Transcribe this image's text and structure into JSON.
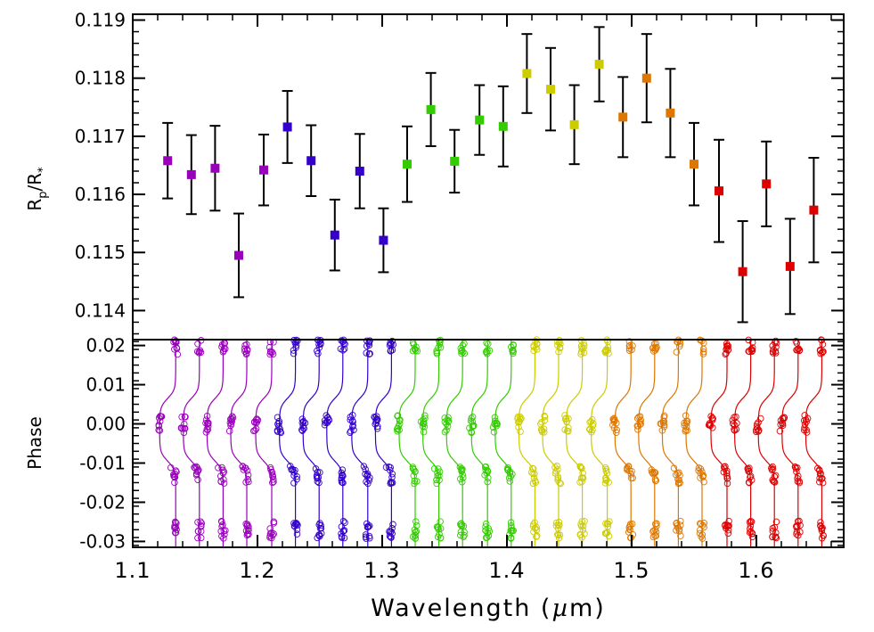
{
  "chart_data": [
    {
      "type": "scatter",
      "panel": "top",
      "ylabel": "Rp/R*",
      "ylabel_parts": {
        "main": "R",
        "sub1": "p",
        "slash": "/R",
        "sub2": "*"
      },
      "ylim": [
        0.1135,
        0.1191
      ],
      "yticks": [
        "0.114",
        "0.115",
        "0.116",
        "0.117",
        "0.118",
        "0.119"
      ],
      "ytick_values": [
        0.114,
        0.115,
        0.116,
        0.117,
        0.118,
        0.119
      ],
      "xlim": [
        1.1,
        1.67
      ],
      "grid": false,
      "error_bars": true,
      "points": [
        {
          "x": 1.128,
          "y": 0.11658,
          "err": 0.00065,
          "color": "#9900bb"
        },
        {
          "x": 1.147,
          "y": 0.11634,
          "err": 0.00068,
          "color": "#9900bb"
        },
        {
          "x": 1.166,
          "y": 0.11645,
          "err": 0.00073,
          "color": "#9900bb"
        },
        {
          "x": 1.185,
          "y": 0.11495,
          "err": 0.00072,
          "color": "#9900bb"
        },
        {
          "x": 1.205,
          "y": 0.11642,
          "err": 0.00061,
          "color": "#9900bb"
        },
        {
          "x": 1.224,
          "y": 0.11716,
          "err": 0.00062,
          "color": "#3300cc"
        },
        {
          "x": 1.243,
          "y": 0.11658,
          "err": 0.00061,
          "color": "#3300cc"
        },
        {
          "x": 1.262,
          "y": 0.1153,
          "err": 0.00061,
          "color": "#3300cc"
        },
        {
          "x": 1.282,
          "y": 0.1164,
          "err": 0.00064,
          "color": "#3300cc"
        },
        {
          "x": 1.301,
          "y": 0.11521,
          "err": 0.00055,
          "color": "#3300cc"
        },
        {
          "x": 1.32,
          "y": 0.11652,
          "err": 0.00065,
          "color": "#33cc00"
        },
        {
          "x": 1.339,
          "y": 0.11746,
          "err": 0.00063,
          "color": "#33cc00"
        },
        {
          "x": 1.358,
          "y": 0.11657,
          "err": 0.00054,
          "color": "#33cc00"
        },
        {
          "x": 1.378,
          "y": 0.11728,
          "err": 0.0006,
          "color": "#33cc00"
        },
        {
          "x": 1.397,
          "y": 0.11717,
          "err": 0.00069,
          "color": "#33cc00"
        },
        {
          "x": 1.416,
          "y": 0.11808,
          "err": 0.00068,
          "color": "#cccc00"
        },
        {
          "x": 1.435,
          "y": 0.11781,
          "err": 0.00071,
          "color": "#cccc00"
        },
        {
          "x": 1.454,
          "y": 0.1172,
          "err": 0.00068,
          "color": "#cccc00"
        },
        {
          "x": 1.474,
          "y": 0.11824,
          "err": 0.00064,
          "color": "#cccc00"
        },
        {
          "x": 1.493,
          "y": 0.11733,
          "err": 0.00069,
          "color": "#dd7700"
        },
        {
          "x": 1.512,
          "y": 0.118,
          "err": 0.00076,
          "color": "#dd7700"
        },
        {
          "x": 1.531,
          "y": 0.1174,
          "err": 0.00076,
          "color": "#dd7700"
        },
        {
          "x": 1.55,
          "y": 0.11652,
          "err": 0.00071,
          "color": "#dd7700"
        },
        {
          "x": 1.57,
          "y": 0.11606,
          "err": 0.00088,
          "color": "#dd0000"
        },
        {
          "x": 1.589,
          "y": 0.11467,
          "err": 0.00087,
          "color": "#dd0000"
        },
        {
          "x": 1.608,
          "y": 0.11618,
          "err": 0.00073,
          "color": "#dd0000"
        },
        {
          "x": 1.627,
          "y": 0.11476,
          "err": 0.00082,
          "color": "#dd0000"
        },
        {
          "x": 1.646,
          "y": 0.11573,
          "err": 0.0009,
          "color": "#dd0000"
        }
      ]
    },
    {
      "type": "line",
      "panel": "bottom",
      "ylabel": "Phase",
      "xlabel": "Wavelength (µm)",
      "xlabel_parts": {
        "left": "Wavelength (",
        "mu": "µ",
        "right": "m)"
      },
      "ylim": [
        -0.0315,
        0.0215
      ],
      "yticks": [
        "0.02",
        "0.01",
        "0.00",
        "-0.01",
        "-0.02",
        "-0.03"
      ],
      "ytick_values": [
        0.02,
        0.01,
        0.0,
        -0.01,
        -0.02,
        -0.03
      ],
      "xlim": [
        1.1,
        1.67
      ],
      "xticks": [
        "1.1",
        "1.2",
        "1.3",
        "1.4",
        "1.5",
        "1.6"
      ],
      "xtick_values": [
        1.1,
        1.2,
        1.3,
        1.4,
        1.5,
        1.6
      ],
      "description": "Spectroscopic transit light curves plotted vertically, one per wavelength channel, with data as circles and model as lines",
      "phase_clusters": [
        0.02,
        0.0,
        -0.013,
        -0.027
      ],
      "transit_depth_offset": 0.0108,
      "channels": [
        {
          "x": 1.128,
          "color": "#9900bb"
        },
        {
          "x": 1.147,
          "color": "#9900bb"
        },
        {
          "x": 1.166,
          "color": "#9900bb"
        },
        {
          "x": 1.185,
          "color": "#9900bb"
        },
        {
          "x": 1.205,
          "color": "#9900bb"
        },
        {
          "x": 1.224,
          "color": "#3300cc"
        },
        {
          "x": 1.243,
          "color": "#3300cc"
        },
        {
          "x": 1.262,
          "color": "#3300cc"
        },
        {
          "x": 1.282,
          "color": "#3300cc"
        },
        {
          "x": 1.301,
          "color": "#3300cc"
        },
        {
          "x": 1.32,
          "color": "#33cc00"
        },
        {
          "x": 1.339,
          "color": "#33cc00"
        },
        {
          "x": 1.358,
          "color": "#33cc00"
        },
        {
          "x": 1.378,
          "color": "#33cc00"
        },
        {
          "x": 1.397,
          "color": "#33cc00"
        },
        {
          "x": 1.416,
          "color": "#cccc00"
        },
        {
          "x": 1.435,
          "color": "#cccc00"
        },
        {
          "x": 1.454,
          "color": "#cccc00"
        },
        {
          "x": 1.474,
          "color": "#cccc00"
        },
        {
          "x": 1.493,
          "color": "#dd7700"
        },
        {
          "x": 1.512,
          "color": "#dd7700"
        },
        {
          "x": 1.531,
          "color": "#dd7700"
        },
        {
          "x": 1.55,
          "color": "#dd7700"
        },
        {
          "x": 1.57,
          "color": "#dd0000"
        },
        {
          "x": 1.589,
          "color": "#dd0000"
        },
        {
          "x": 1.608,
          "color": "#dd0000"
        },
        {
          "x": 1.627,
          "color": "#dd0000"
        },
        {
          "x": 1.646,
          "color": "#dd0000"
        }
      ]
    }
  ]
}
